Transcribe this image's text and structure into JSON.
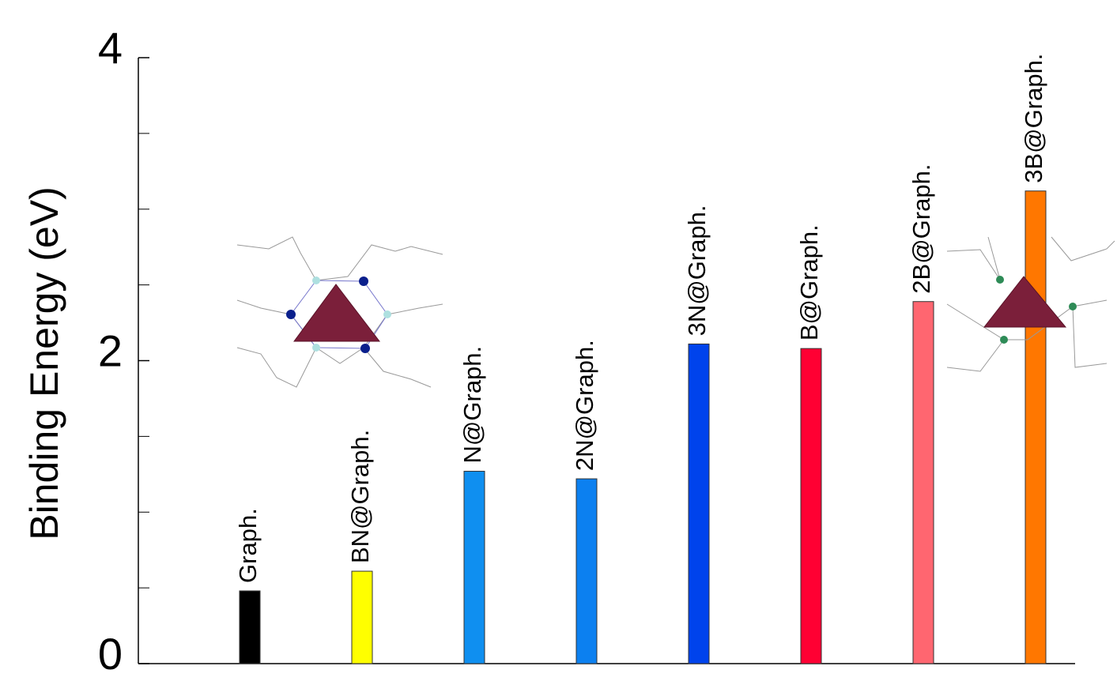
{
  "chart_data": {
    "type": "bar",
    "y_label": "Binding Energy (eV)",
    "categories": [
      "Graph.",
      "BN@Graph.",
      "N@Graph.",
      "2N@Graph.",
      "3N@Graph.",
      "B@Graph.",
      "2B@Graph.",
      "3B@Graph."
    ],
    "values": [
      0.48,
      0.61,
      1.27,
      1.22,
      2.11,
      2.08,
      2.39,
      3.12
    ],
    "colors": [
      "#000000",
      "#ffff00",
      "#0f8ff0",
      "#0c80f0",
      "#0043ec",
      "#ff0033",
      "#ff6670",
      "#ff7700"
    ],
    "ylim": [
      0,
      4
    ],
    "yticks": [
      0,
      2,
      4
    ],
    "yminorticks": [
      0.5,
      1,
      1.5,
      2.5,
      3,
      3.5
    ]
  }
}
